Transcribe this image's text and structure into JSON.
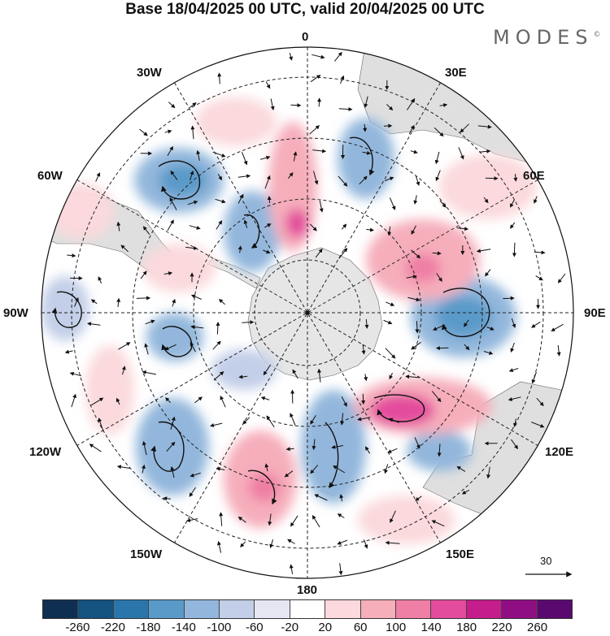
{
  "title": "Base 18/04/2025 00 UTC, valid 20/04/2025 00 UTC",
  "brand": "MODES",
  "brand_mark": "©",
  "longitude_labels": [
    "0",
    "30E",
    "60E",
    "90E",
    "120E",
    "150E",
    "180",
    "150W",
    "120W",
    "90W",
    "60W",
    "30W"
  ],
  "vector_reference": {
    "label": "30"
  },
  "colorbar": {
    "tick_labels": [
      "-260",
      "-220",
      "-180",
      "-140",
      "-100",
      "-60",
      "-20",
      "20",
      "60",
      "100",
      "140",
      "180",
      "220",
      "260"
    ],
    "colors": [
      "#0f2f52",
      "#14527f",
      "#2a76ab",
      "#5a9ac9",
      "#93b7dc",
      "#c3cfe8",
      "#e6e6f3",
      "#ffffff",
      "#fbd9dc",
      "#f6aebb",
      "#ef7fa4",
      "#e34c9c",
      "#c61d8c",
      "#8f0e83",
      "#5a0a6e"
    ]
  },
  "colors": {
    "land": "#d9d9d9",
    "antarctica": "#e2e2e2",
    "graticule": "#222222",
    "arrow": "#111111"
  }
}
